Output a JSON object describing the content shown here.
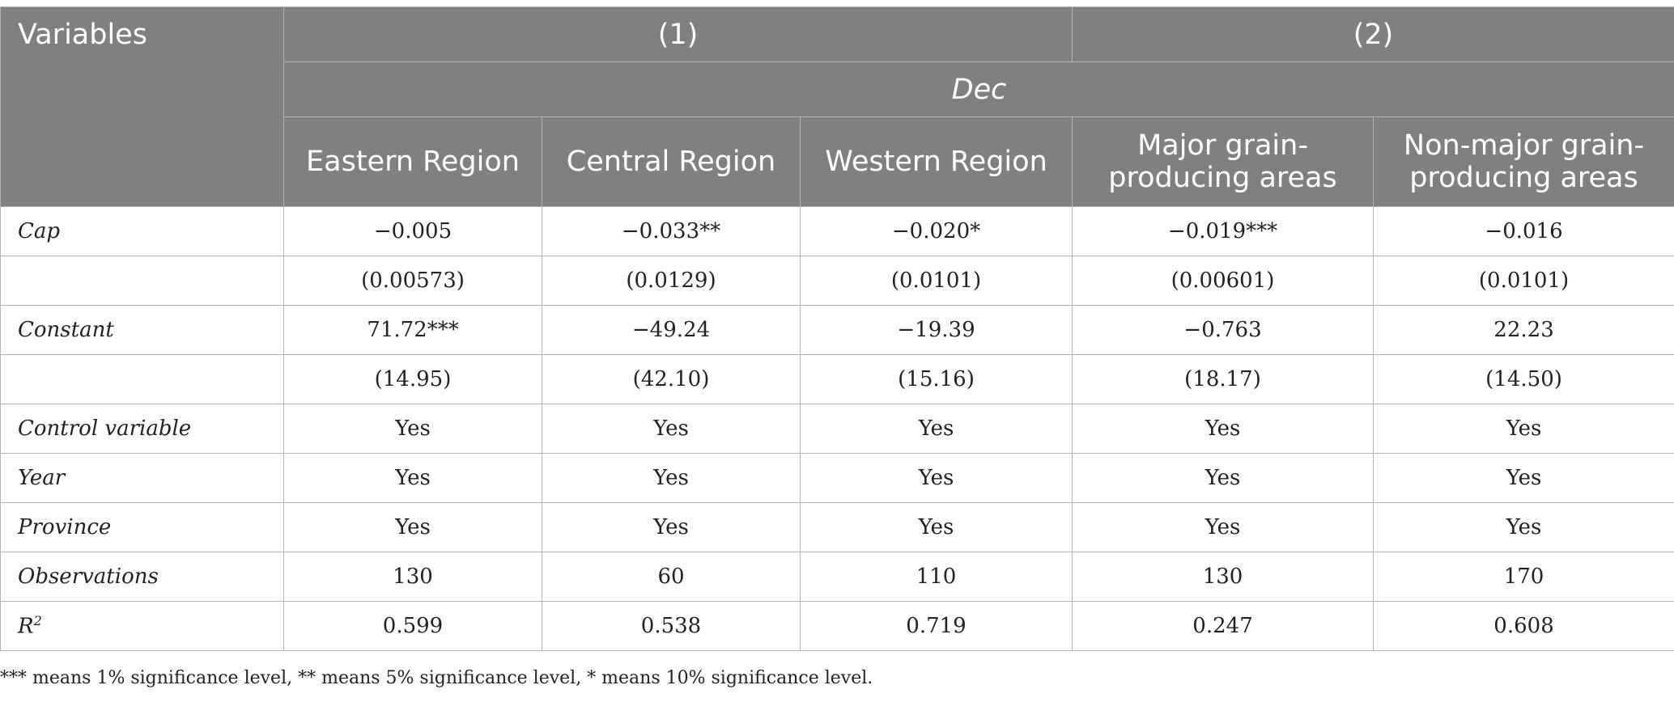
{
  "table": {
    "header": {
      "variables": "Variables",
      "group1": "(1)",
      "group2": "(2)",
      "dependent": "Dec",
      "columns": [
        "Eastern Region",
        "Central Region",
        "Western Region",
        "Major grain-producing areas",
        "Non-major grain-producing areas"
      ]
    },
    "rows": [
      {
        "label": "Cap",
        "sup": "",
        "values": [
          "−0.005",
          "−0.033**",
          "−0.020*",
          "−0.019***",
          "−0.016"
        ]
      },
      {
        "label": "",
        "sup": "",
        "values": [
          "(0.00573)",
          "(0.0129)",
          "(0.0101)",
          "(0.00601)",
          "(0.0101)"
        ]
      },
      {
        "label": "Constant",
        "sup": "",
        "values": [
          "71.72***",
          "−49.24",
          "−19.39",
          "−0.763",
          "22.23"
        ]
      },
      {
        "label": "",
        "sup": "",
        "values": [
          "(14.95)",
          "(42.10)",
          "(15.16)",
          "(18.17)",
          "(14.50)"
        ]
      },
      {
        "label": "Control variable",
        "sup": "",
        "values": [
          "Yes",
          "Yes",
          "Yes",
          "Yes",
          "Yes"
        ]
      },
      {
        "label": "Year",
        "sup": "",
        "values": [
          "Yes",
          "Yes",
          "Yes",
          "Yes",
          "Yes"
        ]
      },
      {
        "label": "Province",
        "sup": "",
        "values": [
          "Yes",
          "Yes",
          "Yes",
          "Yes",
          "Yes"
        ]
      },
      {
        "label": "Observations",
        "sup": "",
        "values": [
          "130",
          "60",
          "110",
          "130",
          "170"
        ]
      },
      {
        "label": "R",
        "sup": "2",
        "values": [
          "0.599",
          "0.538",
          "0.719",
          "0.247",
          "0.608"
        ]
      }
    ]
  },
  "note": "*** means 1% significance level, ** means 5% significance level, * means 10% significance level."
}
